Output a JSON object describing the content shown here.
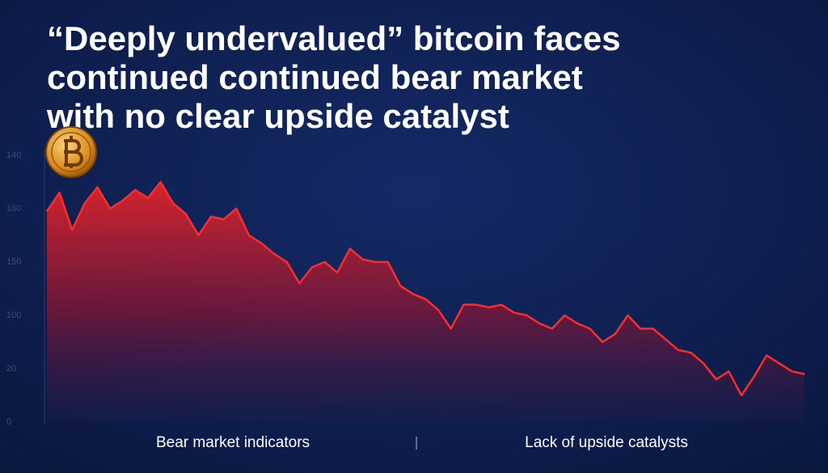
{
  "chart_data": {
    "type": "area",
    "title_lines": [
      "“Deeply undervalued” bitcoin faces",
      "continued continued bear market",
      "with no clear upside catalyst"
    ],
    "y_axis_labels": [
      "140",
      "160",
      "150",
      "100",
      "20",
      "0"
    ],
    "ylim": [
      0,
      100
    ],
    "color": "#ff2a2a",
    "values": [
      79,
      86,
      72,
      82,
      88,
      80,
      83,
      87,
      84,
      90,
      82,
      78,
      70,
      77,
      76,
      80,
      70,
      67,
      63,
      60,
      52,
      58,
      60,
      56,
      65,
      61,
      60,
      60,
      51,
      48,
      46,
      42,
      35,
      44,
      44,
      43,
      44,
      41,
      40,
      37,
      35,
      40,
      37,
      35,
      30,
      33,
      40,
      35,
      35,
      31,
      27,
      26,
      22,
      16,
      19,
      10,
      17,
      25,
      22,
      19,
      18
    ],
    "annotations": [
      "Bear market indicators",
      "Lack of upside catalysts"
    ]
  }
}
